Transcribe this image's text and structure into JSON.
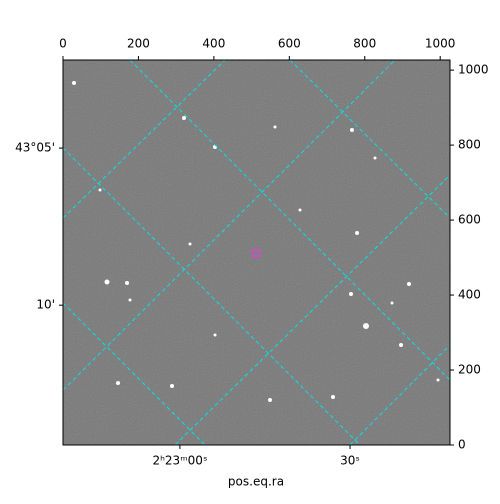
{
  "chart_data": {
    "type": "image",
    "xlabel": "pos.eq.ra",
    "xlim": [
      0,
      1026
    ],
    "ylim": [
      0,
      1027
    ],
    "xticks": [
      0,
      200,
      400,
      600,
      800,
      1000
    ],
    "yticks": [
      0,
      200,
      400,
      600,
      800,
      1000
    ],
    "ra_ticks": [
      {
        "value": 310,
        "label": "2ʰ23ᵐ00ˢ"
      },
      {
        "value": 761,
        "label": "30ˢ"
      }
    ],
    "dec_ticks": [
      {
        "value": 792,
        "label": "43°05'"
      },
      {
        "value": 373,
        "label": "10'"
      }
    ],
    "grid_color": "#00e5e5",
    "marker": {
      "x": 512,
      "y": 512,
      "color": "#e040e0"
    }
  }
}
